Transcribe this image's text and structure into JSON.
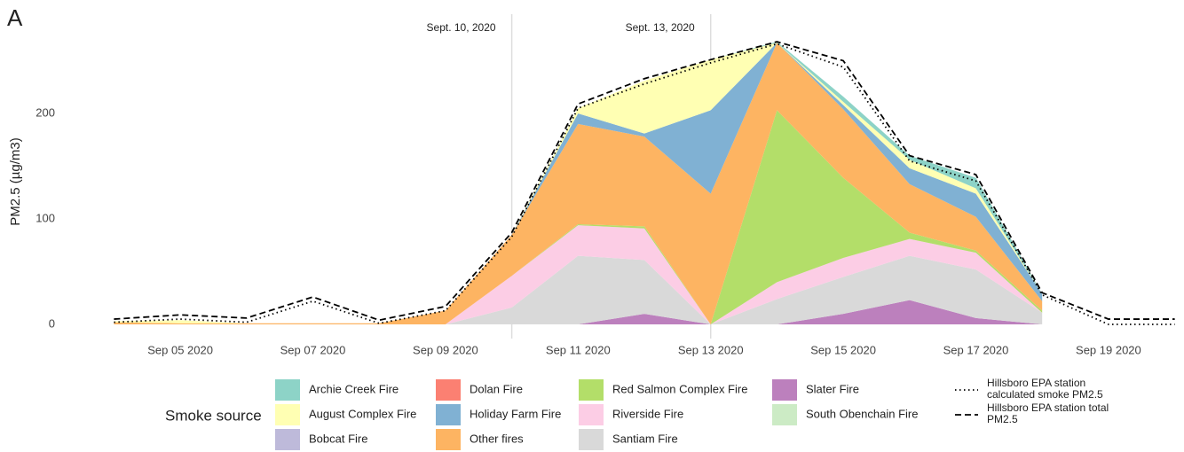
{
  "chart_data": {
    "type": "stacked-area",
    "panel_label": "A",
    "y_label": "PM2.5 (µg/m3)",
    "legend_title": "Smoke source",
    "x": [
      "2020-09-04",
      "2020-09-05",
      "2020-09-06",
      "2020-09-07",
      "2020-09-08",
      "2020-09-09",
      "2020-09-10",
      "2020-09-11",
      "2020-09-12",
      "2020-09-13",
      "2020-09-14",
      "2020-09-15",
      "2020-09-16",
      "2020-09-17",
      "2020-09-18",
      "2020-09-19",
      "2020-09-20"
    ],
    "xlim": [
      "2020-09-04",
      "2020-09-20"
    ],
    "xticks": [
      {
        "value": "2020-09-05",
        "label": "Sep 05 2020"
      },
      {
        "value": "2020-09-07",
        "label": "Sep 07 2020"
      },
      {
        "value": "2020-09-09",
        "label": "Sep 09 2020"
      },
      {
        "value": "2020-09-11",
        "label": "Sep 11 2020"
      },
      {
        "value": "2020-09-13",
        "label": "Sep 13 2020"
      },
      {
        "value": "2020-09-15",
        "label": "Sep 15 2020"
      },
      {
        "value": "2020-09-17",
        "label": "Sep 17 2020"
      },
      {
        "value": "2020-09-19",
        "label": "Sep 19 2020"
      }
    ],
    "ylim": [
      0,
      270
    ],
    "yticks": [
      0,
      100,
      200
    ],
    "grid": false,
    "series": [
      {
        "name": "Archie Creek Fire",
        "color": "#8dd3c7",
        "values": [
          0,
          0,
          0,
          0,
          0,
          0,
          0,
          0,
          0,
          0,
          1,
          5,
          4,
          10,
          0,
          null,
          null
        ]
      },
      {
        "name": "August Complex Fire",
        "color": "#ffffb3",
        "values": [
          1,
          3,
          0,
          0,
          0,
          0,
          0,
          5,
          50,
          48,
          0,
          3,
          8,
          5,
          0,
          null,
          null
        ]
      },
      {
        "name": "Bobcat Fire",
        "color": "#bebada",
        "values": [
          0,
          0,
          0,
          0,
          0,
          0,
          0,
          0,
          0,
          0,
          0,
          0,
          0,
          0,
          0,
          null,
          null
        ]
      },
      {
        "name": "Dolan Fire",
        "color": "#fb8072",
        "values": [
          0,
          0,
          0,
          0,
          0,
          0,
          0,
          0,
          0,
          0,
          0,
          0,
          0,
          0,
          0,
          null,
          null
        ]
      },
      {
        "name": "Holiday Farm Fire",
        "color": "#80b1d3",
        "values": [
          0,
          0,
          0,
          0,
          0,
          0,
          0,
          10,
          3,
          79,
          0,
          4,
          15,
          22,
          7,
          null,
          null
        ]
      },
      {
        "name": "Other fires",
        "color": "#fdb462",
        "values": [
          2,
          1,
          1,
          1,
          1,
          13,
          39,
          95,
          85,
          124,
          64,
          65,
          46,
          32,
          9,
          null,
          null
        ]
      },
      {
        "name": "Red Salmon Complex Fire",
        "color": "#b3de69",
        "values": [
          0,
          0,
          0,
          0,
          0,
          0,
          0,
          1,
          2,
          0,
          163,
          76,
          6,
          2,
          2,
          null,
          null
        ]
      },
      {
        "name": "Riverside Fire",
        "color": "#fccde5",
        "values": [
          0,
          0,
          0,
          0,
          0,
          0,
          30,
          29,
          30,
          0,
          16,
          18,
          16,
          16,
          0,
          null,
          null
        ]
      },
      {
        "name": "Santiam Fire",
        "color": "#d9d9d9",
        "values": [
          0,
          0,
          0,
          0,
          0,
          0,
          16,
          65,
          51,
          0,
          24,
          35,
          42,
          46,
          11,
          null,
          null
        ]
      },
      {
        "name": "Slater Fire",
        "color": "#bc80bd",
        "values": [
          0,
          0,
          0,
          0,
          0,
          0,
          0,
          0,
          10,
          0,
          0,
          10,
          23,
          6,
          0,
          null,
          null
        ]
      },
      {
        "name": "South Obenchain Fire",
        "color": "#ccebc5",
        "values": [
          0,
          0,
          0,
          0,
          0,
          0,
          0,
          0,
          0,
          0,
          0,
          0,
          0,
          0,
          0,
          null,
          null
        ]
      }
    ],
    "lines": [
      {
        "name": "Hillsboro EPA station calculated smoke PM2.5",
        "color": "#000000",
        "dash": "dotted",
        "values": [
          2,
          5,
          2,
          22,
          1,
          13,
          83,
          205,
          228,
          248,
          266,
          244,
          155,
          136,
          28,
          0,
          0
        ]
      },
      {
        "name": "Hillsboro EPA station total PM2.5",
        "color": "#000000",
        "dash": "dashed",
        "values": [
          5,
          9,
          6,
          26,
          4,
          17,
          87,
          209,
          233,
          251,
          268,
          250,
          160,
          142,
          30,
          5,
          5
        ]
      }
    ],
    "annotations": [
      {
        "x": "2020-09-10",
        "label": "Sept. 10, 2020"
      },
      {
        "x": "2020-09-13",
        "label": "Sept. 13, 2020"
      }
    ]
  }
}
